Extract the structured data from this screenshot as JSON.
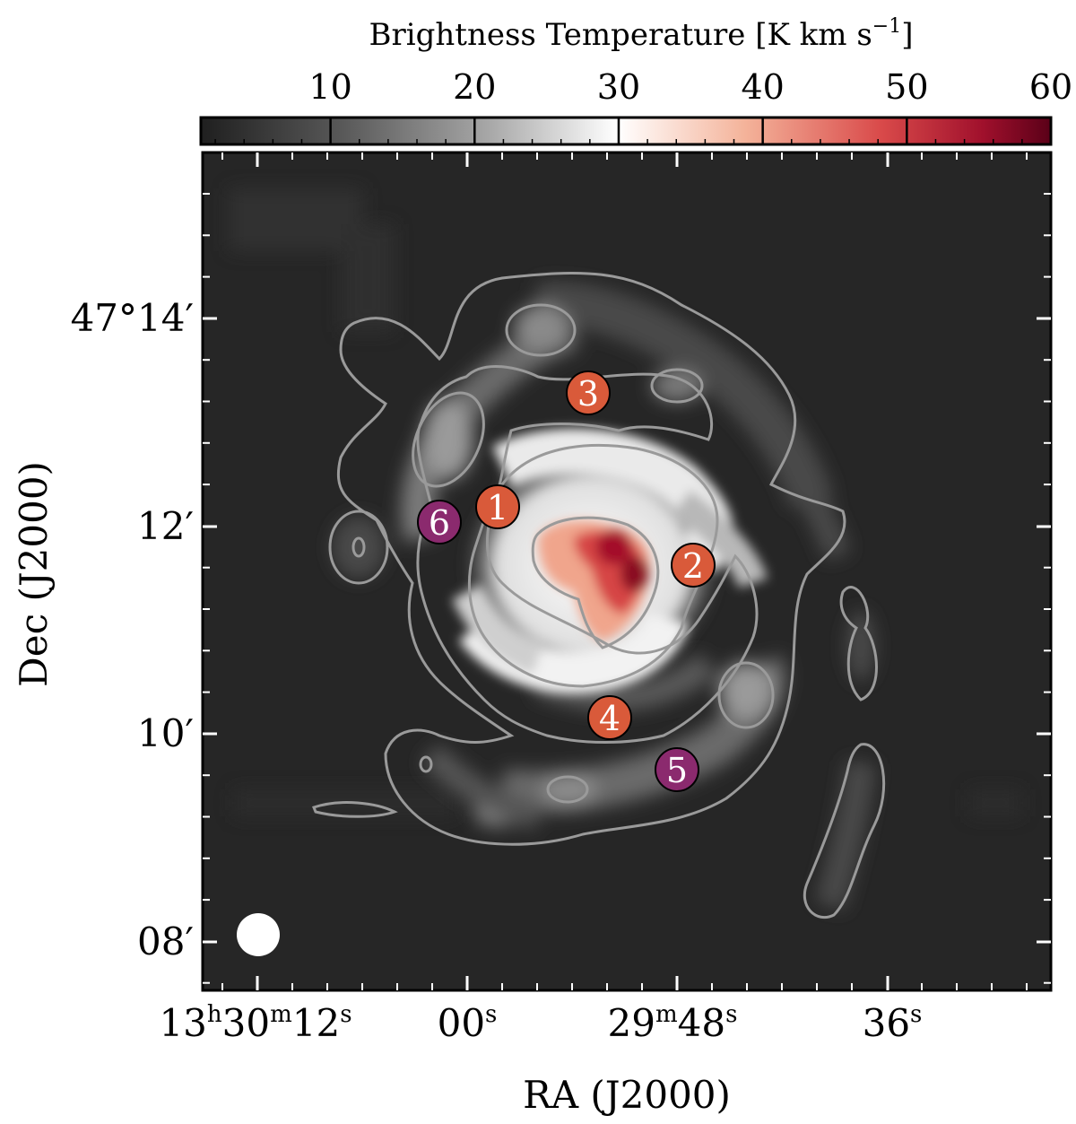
{
  "chart_data": {
    "type": "heatmap",
    "title": "",
    "colorbar": {
      "label_main": "Brightness Temperature [K km s",
      "label_sup": "−1",
      "label_close": "]",
      "ticks": [
        "10",
        "20",
        "30",
        "40",
        "50",
        "60"
      ],
      "range": [
        1,
        60
      ],
      "colormap": "gray-to-red"
    },
    "xlabel": "RA (J2000)",
    "ylabel": "Dec (J2000)",
    "x_ticks": [
      {
        "main": "13",
        "parts": [
          [
            "h",
            "sup"
          ],
          [
            "30",
            ""
          ],
          [
            "m",
            "sup"
          ],
          [
            "12",
            ""
          ],
          [
            "s",
            "sup"
          ]
        ]
      },
      {
        "main": "00",
        "parts": [
          [
            "s",
            "sup"
          ]
        ]
      },
      {
        "main": "29",
        "parts": [
          [
            "m",
            "sup"
          ],
          [
            "48",
            ""
          ],
          [
            "s",
            "sup"
          ]
        ]
      },
      {
        "main": "36",
        "parts": [
          [
            "s",
            "sup"
          ]
        ]
      }
    ],
    "y_ticks": [
      "47°14′",
      "12′",
      "10′",
      "08′"
    ],
    "regions": [
      {
        "label": "1",
        "type": "interarm",
        "color": "#d95a3a"
      },
      {
        "label": "2",
        "type": "interarm",
        "color": "#d95a3a"
      },
      {
        "label": "3",
        "type": "interarm",
        "color": "#d95a3a"
      },
      {
        "label": "4",
        "type": "interarm",
        "color": "#d95a3a"
      },
      {
        "label": "5",
        "type": "arm",
        "color": "#8b2a6e"
      },
      {
        "label": "6",
        "type": "arm",
        "color": "#8b2a6e"
      }
    ],
    "beam": "white filled circle",
    "contours": "gray",
    "background": "#262626"
  }
}
